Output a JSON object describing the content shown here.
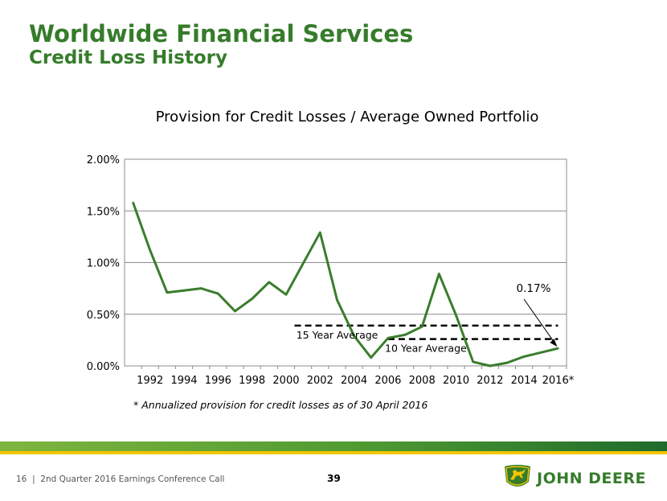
{
  "header": {
    "title": "Worldwide Financial Services",
    "subtitle": "Credit Loss History"
  },
  "chart_data": {
    "type": "line",
    "title": "Provision for Credit Losses / Average Owned Portfolio",
    "xlabel": "",
    "ylabel": "",
    "x": [
      "1991",
      "1992",
      "1993",
      "1994",
      "1995",
      "1996",
      "1997",
      "1998",
      "1999",
      "2000",
      "2001",
      "2002",
      "2003",
      "2004",
      "2005",
      "2006",
      "2007",
      "2008",
      "2009",
      "2010",
      "2011",
      "2012",
      "2013",
      "2014",
      "2015",
      "2016*"
    ],
    "xticks": [
      "1992",
      "1994",
      "1996",
      "1998",
      "2000",
      "2002",
      "2004",
      "2006",
      "2008",
      "2010",
      "2012",
      "2014",
      "2016*"
    ],
    "yticks": [
      "0.00%",
      "0.50%",
      "1.00%",
      "1.50%",
      "2.00%"
    ],
    "ylim": [
      0,
      2.0
    ],
    "grid": true,
    "series": [
      {
        "name": "Provision for Credit Losses / Average Owned Portfolio",
        "color": "#3a7d2c",
        "values": [
          1.58,
          1.12,
          0.71,
          0.73,
          0.75,
          0.7,
          0.53,
          0.65,
          0.81,
          0.69,
          0.99,
          1.29,
          0.64,
          0.29,
          0.08,
          0.27,
          0.3,
          0.38,
          0.89,
          0.49,
          0.04,
          0.0,
          0.03,
          0.09,
          0.13,
          0.17
        ]
      }
    ],
    "reference_lines": [
      {
        "label": "15 Year Average",
        "value": 0.39,
        "from": "2001",
        "to": "2016*"
      },
      {
        "label": "10 Year Average",
        "value": 0.26,
        "from": "2006",
        "to": "2016*"
      }
    ],
    "annotation": {
      "text": "0.17%",
      "points_to": "2016*"
    }
  },
  "footnote": "* Annualized provision for credit losses as of 30 April 2016",
  "footer": {
    "page_label": "16",
    "separator": "|",
    "event": "2nd Quarter 2016 Earnings Conference Call",
    "slide_number": "39",
    "brand": "JOHN DEERE"
  },
  "colors": {
    "brand_green": "#367c2b",
    "line_green": "#3a7d2c",
    "yellow": "#f2c500"
  }
}
